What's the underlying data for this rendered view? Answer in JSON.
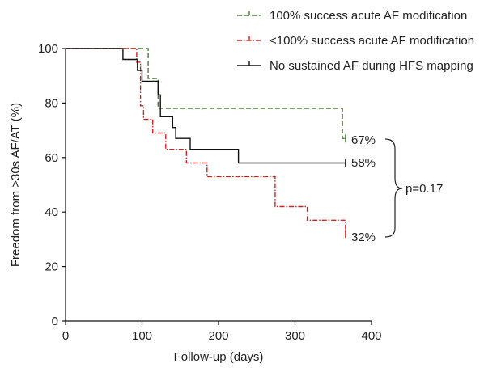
{
  "chart_data": {
    "type": "line",
    "subtype": "kaplan-meier-step",
    "title": "",
    "xlabel": "Follow-up (days)",
    "ylabel": "Freedom from >30s AF/AT (%)",
    "xlim": [
      0,
      400
    ],
    "ylim": [
      0,
      100
    ],
    "xticks": [
      0,
      100,
      200,
      300,
      400
    ],
    "yticks": [
      0,
      20,
      40,
      60,
      80,
      100
    ],
    "grid": false,
    "legend_position": "top-right",
    "series": [
      {
        "name": "100% success acute AF modification",
        "color": "#4a7a3a",
        "style": "dashed",
        "steps": [
          [
            0,
            100
          ],
          [
            108,
            100
          ],
          [
            108,
            89
          ],
          [
            121,
            89
          ],
          [
            121,
            78
          ],
          [
            362,
            78
          ],
          [
            362,
            67
          ],
          [
            366,
            67
          ]
        ]
      },
      {
        "name": "<100% success acute AF modification",
        "color": "#cc2222",
        "style": "dash-dot",
        "steps": [
          [
            0,
            100
          ],
          [
            93,
            100
          ],
          [
            93,
            95
          ],
          [
            98,
            95
          ],
          [
            98,
            79
          ],
          [
            102,
            79
          ],
          [
            102,
            74
          ],
          [
            114,
            74
          ],
          [
            114,
            69
          ],
          [
            131,
            69
          ],
          [
            131,
            63
          ],
          [
            158,
            63
          ],
          [
            158,
            58
          ],
          [
            185,
            58
          ],
          [
            185,
            53
          ],
          [
            274,
            53
          ],
          [
            274,
            42
          ],
          [
            316,
            42
          ],
          [
            316,
            37
          ],
          [
            366,
            37
          ],
          [
            366,
            32
          ]
        ]
      },
      {
        "name": "No sustained AF during HFS mapping",
        "color": "#111111",
        "style": "solid",
        "steps": [
          [
            0,
            100
          ],
          [
            75,
            100
          ],
          [
            75,
            96
          ],
          [
            94,
            96
          ],
          [
            94,
            92
          ],
          [
            100,
            92
          ],
          [
            100,
            88
          ],
          [
            121,
            88
          ],
          [
            121,
            83
          ],
          [
            124,
            83
          ],
          [
            124,
            75
          ],
          [
            140,
            75
          ],
          [
            140,
            71
          ],
          [
            144,
            71
          ],
          [
            144,
            67
          ],
          [
            163,
            67
          ],
          [
            163,
            63
          ],
          [
            226,
            63
          ],
          [
            226,
            58
          ],
          [
            366,
            58
          ]
        ]
      }
    ],
    "annotations": {
      "end_labels": [
        "67%",
        "58%",
        "32%"
      ],
      "p_value": "p=0.17"
    }
  }
}
